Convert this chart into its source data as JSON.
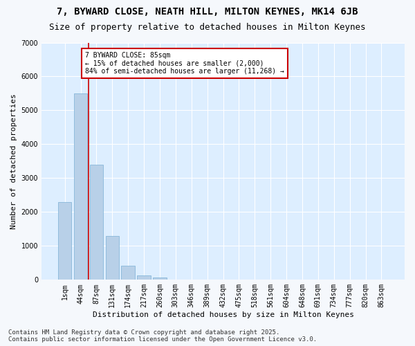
{
  "title_line1": "7, BYWARD CLOSE, NEATH HILL, MILTON KEYNES, MK14 6JB",
  "title_line2": "Size of property relative to detached houses in Milton Keynes",
  "xlabel": "Distribution of detached houses by size in Milton Keynes",
  "ylabel": "Number of detached properties",
  "bar_labels": [
    "1sqm",
    "44sqm",
    "87sqm",
    "131sqm",
    "174sqm",
    "217sqm",
    "260sqm",
    "303sqm",
    "346sqm",
    "389sqm",
    "432sqm",
    "475sqm",
    "518sqm",
    "561sqm",
    "604sqm",
    "648sqm",
    "691sqm",
    "734sqm",
    "777sqm",
    "820sqm",
    "863sqm"
  ],
  "bar_values": [
    2300,
    5500,
    3400,
    1300,
    420,
    130,
    60,
    0,
    0,
    0,
    0,
    0,
    0,
    0,
    0,
    0,
    0,
    0,
    0,
    0,
    0
  ],
  "bar_color": "#b8d0e8",
  "bar_edge_color": "#7aafd4",
  "background_color": "#ddeeff",
  "grid_color": "#ffffff",
  "vline_color": "#cc0000",
  "annotation_text": "7 BYWARD CLOSE: 85sqm\n← 15% of detached houses are smaller (2,000)\n84% of semi-detached houses are larger (11,268) →",
  "annotation_box_color": "#cc0000",
  "ylim": [
    0,
    7000
  ],
  "yticks": [
    0,
    1000,
    2000,
    3000,
    4000,
    5000,
    6000,
    7000
  ],
  "footer_line1": "Contains HM Land Registry data © Crown copyright and database right 2025.",
  "footer_line2": "Contains public sector information licensed under the Open Government Licence v3.0.",
  "title_fontsize": 10,
  "subtitle_fontsize": 9,
  "axis_label_fontsize": 8,
  "tick_fontsize": 7,
  "annotation_fontsize": 7,
  "footer_fontsize": 6.5,
  "fig_facecolor": "#f5f8fc"
}
